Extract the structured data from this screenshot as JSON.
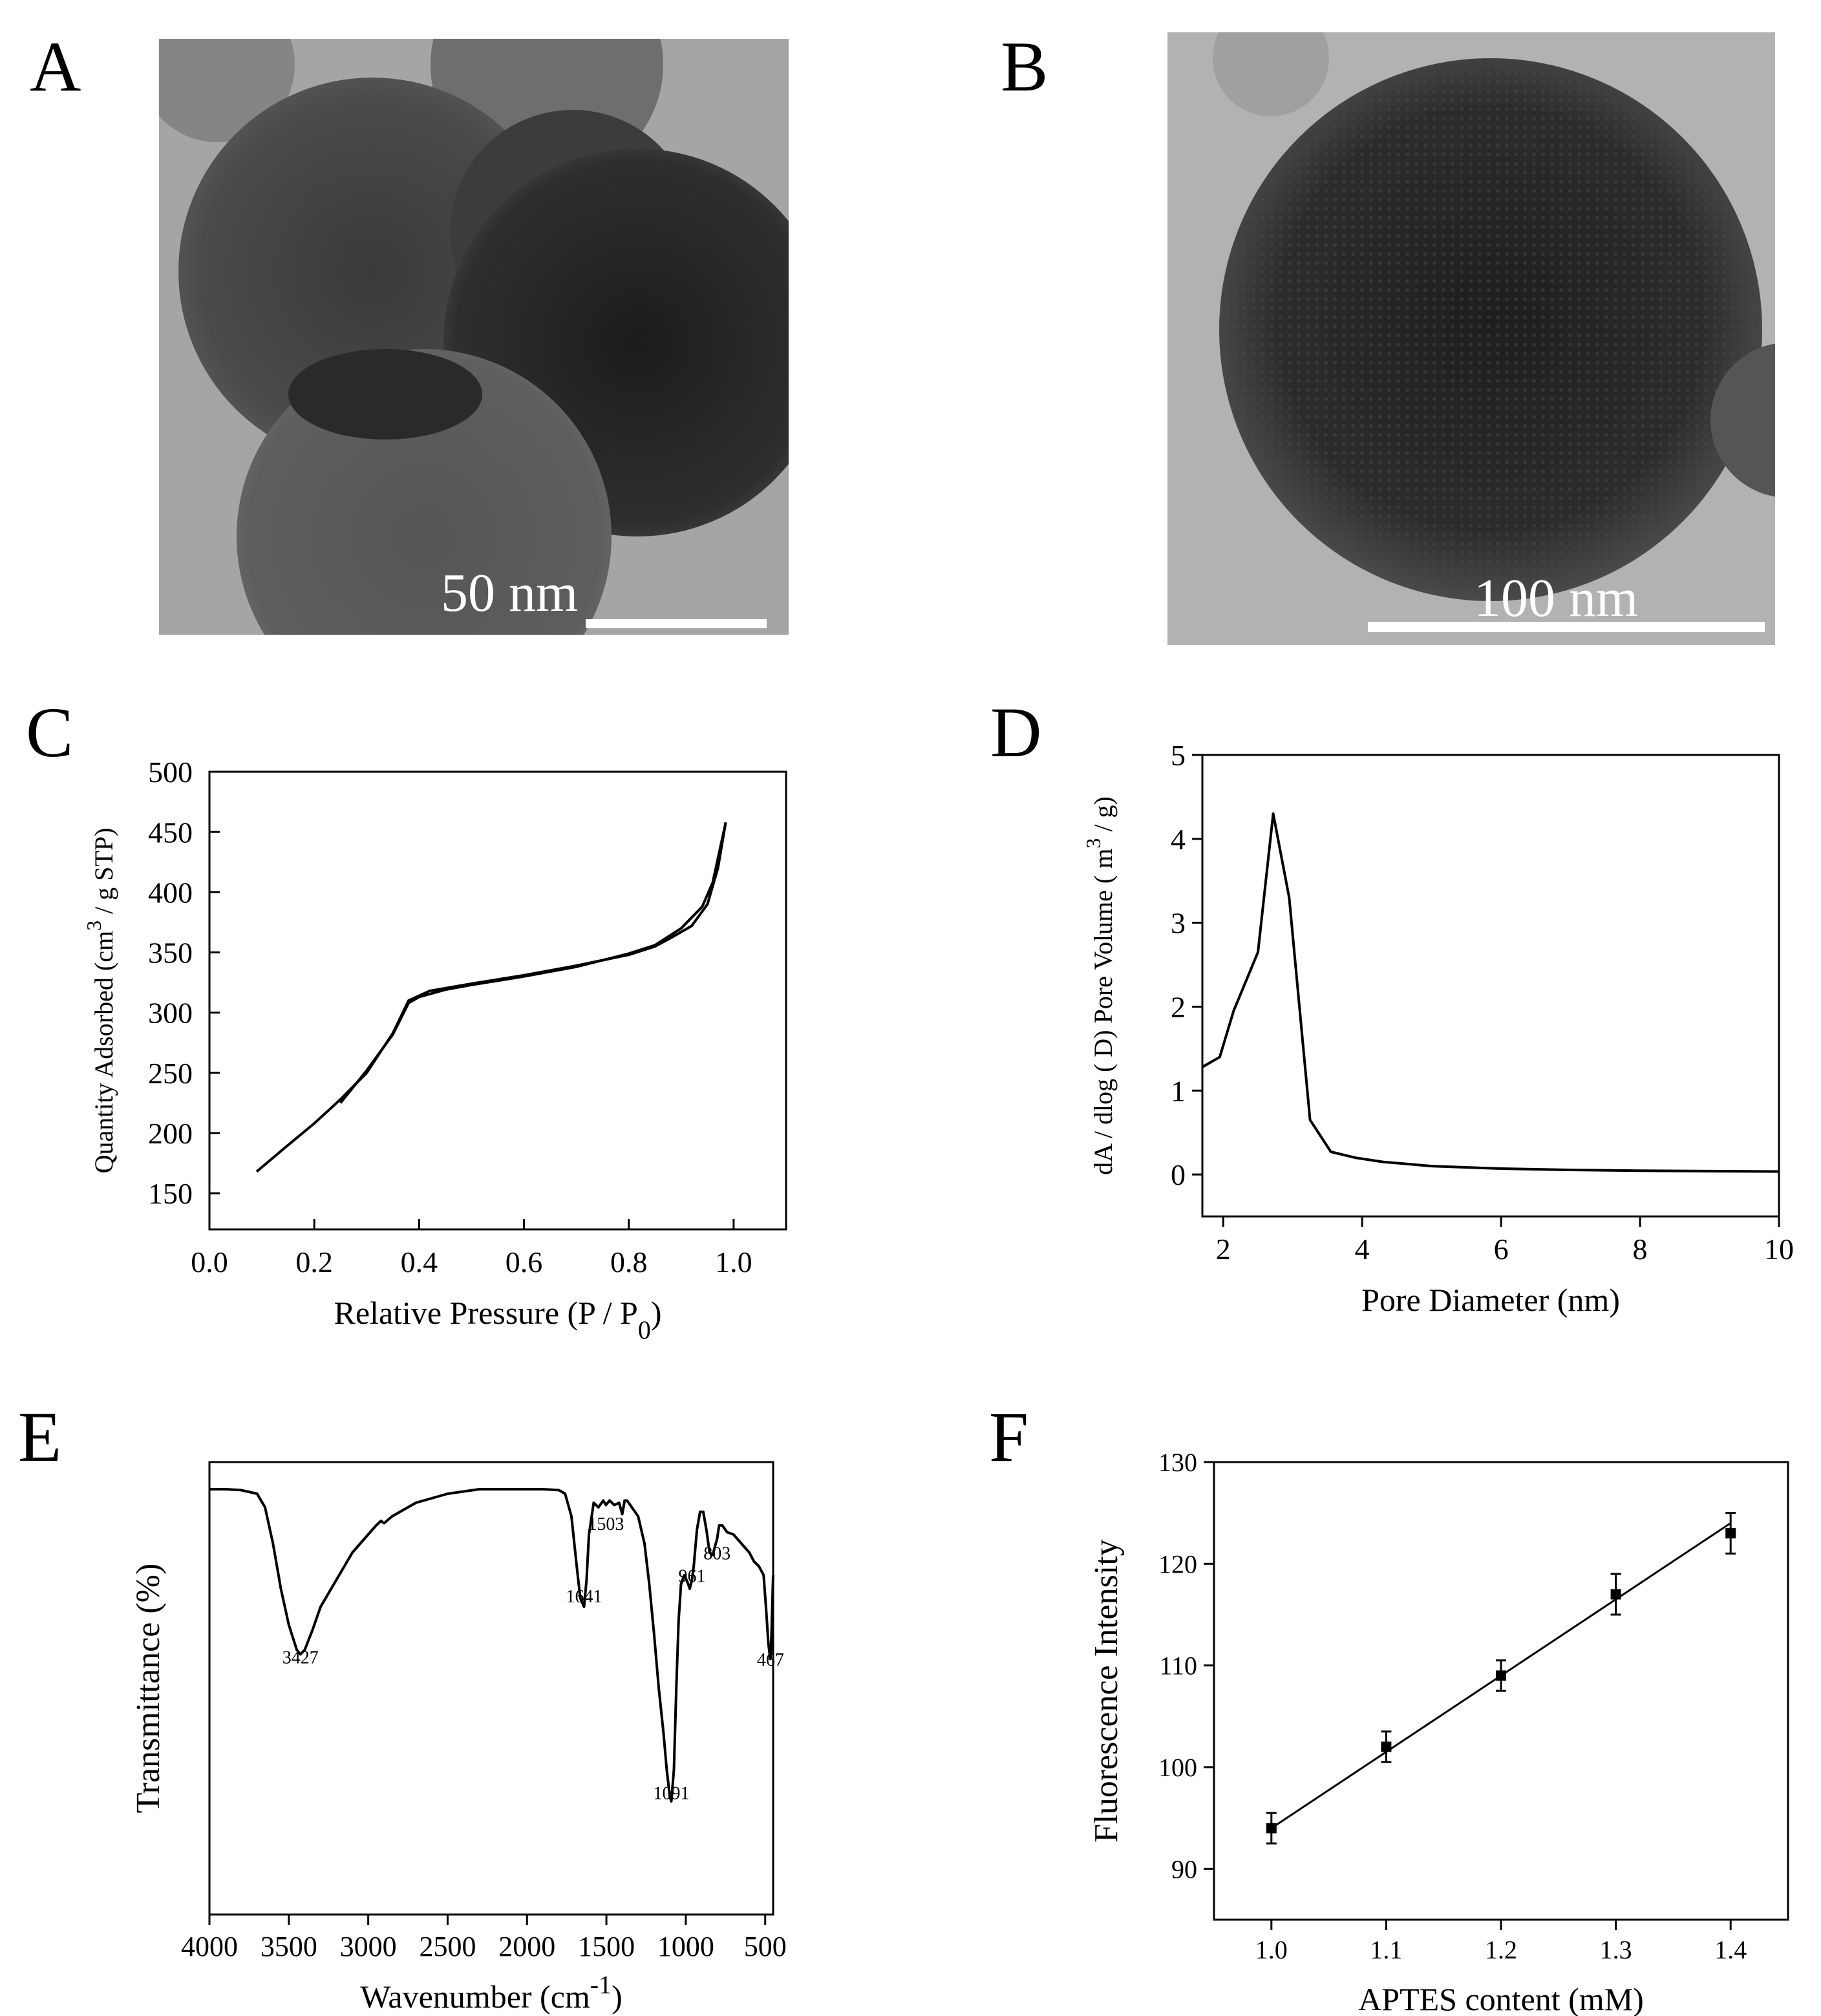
{
  "panels": {
    "A": {
      "letter": "A",
      "scale_bar": "50 nm"
    },
    "B": {
      "letter": "B",
      "scale_bar": "100 nm"
    },
    "C": {
      "letter": "C"
    },
    "D": {
      "letter": "D"
    },
    "E": {
      "letter": "E"
    },
    "F": {
      "letter": "F"
    }
  },
  "chart_data": [
    {
      "id": "C",
      "type": "line",
      "xlabel": "Relative Pressure (P / P",
      "xlabel_sub": "0",
      "xlabel_end": ")",
      "ylabel": "Quantity Adsorbed (cm",
      "ylabel_sup": "3",
      "ylabel_end": " / g STP)",
      "xlim": [
        0.0,
        1.1
      ],
      "ylim": [
        120,
        500
      ],
      "xticks": [
        "0.0",
        "0.2",
        "0.4",
        "0.6",
        "0.8",
        "1.0"
      ],
      "xtick_values": [
        0.0,
        0.2,
        0.4,
        0.6,
        0.8,
        1.0
      ],
      "yticks": [
        "150",
        "200",
        "250",
        "300",
        "350",
        "400",
        "450",
        "500"
      ],
      "ytick_values": [
        150,
        200,
        250,
        300,
        350,
        400,
        450,
        500
      ],
      "series": [
        {
          "x": [
            0.09,
            0.15,
            0.2,
            0.25,
            0.3,
            0.35,
            0.38,
            0.42,
            0.5,
            0.6,
            0.7,
            0.8,
            0.85,
            0.88,
            0.92,
            0.95,
            0.97,
            0.985
          ],
          "y": [
            168,
            190,
            208,
            228,
            250,
            283,
            310,
            318,
            324,
            331,
            339,
            348,
            355,
            362,
            372,
            390,
            420,
            458
          ]
        },
        {
          "x": [
            0.985,
            0.975,
            0.96,
            0.94,
            0.9,
            0.85,
            0.8,
            0.7,
            0.6,
            0.5,
            0.45,
            0.4,
            0.38,
            0.35,
            0.3,
            0.25
          ],
          "y": [
            458,
            438,
            408,
            388,
            370,
            356,
            349,
            338,
            330,
            323,
            319,
            313,
            308,
            282,
            252,
            225
          ]
        }
      ]
    },
    {
      "id": "D",
      "type": "line",
      "xlabel": "Pore Diameter (nm)",
      "ylabel": "dA / dlog ( D) Pore Volume ( m",
      "ylabel_sup": "3",
      "ylabel_end": " / g)",
      "xlim": [
        1.7,
        10
      ],
      "ylim": [
        -0.5,
        5
      ],
      "xticks": [
        "2",
        "4",
        "6",
        "8",
        "10"
      ],
      "xtick_values": [
        2,
        4,
        6,
        8,
        10
      ],
      "yticks": [
        "0",
        "1",
        "2",
        "3",
        "4",
        "5"
      ],
      "ytick_values": [
        0,
        1,
        2,
        3,
        4,
        5
      ],
      "series": [
        {
          "x": [
            1.7,
            1.95,
            2.15,
            2.5,
            2.72,
            2.95,
            3.25,
            3.55,
            3.9,
            4.3,
            5,
            6,
            7,
            8,
            9,
            10
          ],
          "y": [
            1.28,
            1.4,
            1.95,
            2.65,
            4.3,
            3.3,
            0.65,
            0.27,
            0.2,
            0.15,
            0.1,
            0.07,
            0.055,
            0.045,
            0.04,
            0.035
          ]
        }
      ]
    },
    {
      "id": "E",
      "type": "line",
      "xlabel": "Wavenumber (cm",
      "xlabel_sup": "-1",
      "xlabel_end": ")",
      "ylabel": "Transmittance (%)",
      "xlim": [
        4000,
        450
      ],
      "ylim": [
        0,
        100
      ],
      "xticks": [
        "4000",
        "3500",
        "3000",
        "2500",
        "2000",
        "1500",
        "1000",
        "500"
      ],
      "xtick_values": [
        4000,
        3500,
        3000,
        2500,
        2000,
        1500,
        1000,
        500
      ],
      "annotations": [
        {
          "text": "3427",
          "x": 3427,
          "y": 55.5
        },
        {
          "text": "1641",
          "x": 1641,
          "y": 69
        },
        {
          "text": "1503",
          "x": 1503,
          "y": 85
        },
        {
          "text": "961",
          "x": 961,
          "y": 73.5
        },
        {
          "text": "803",
          "x": 803,
          "y": 78.5
        },
        {
          "text": "1091",
          "x": 1091,
          "y": 25.5
        },
        {
          "text": "467",
          "x": 467,
          "y": 55
        }
      ],
      "series": [
        {
          "x": [
            4000,
            3900,
            3800,
            3700,
            3650,
            3600,
            3550,
            3500,
            3450,
            3427,
            3400,
            3350,
            3300,
            3200,
            3100,
            3000,
            2950,
            2920,
            2900,
            2850,
            2700,
            2500,
            2300,
            2100,
            1900,
            1800,
            1760,
            1720,
            1690,
            1665,
            1641,
            1625,
            1610,
            1580,
            1550,
            1520,
            1503,
            1480,
            1450,
            1420,
            1400,
            1385,
            1370,
            1340,
            1300,
            1260,
            1230,
            1200,
            1170,
            1140,
            1120,
            1100,
            1091,
            1075,
            1060,
            1045,
            1030,
            1010,
            990,
            975,
            961,
            950,
            930,
            910,
            890,
            870,
            850,
            830,
            815,
            803,
            790,
            770,
            740,
            700,
            650,
            600,
            570,
            540,
            510,
            495,
            480,
            470,
            467,
            460,
            450
          ],
          "y": [
            94,
            94,
            93.8,
            93,
            90,
            82,
            72,
            64,
            58.5,
            57.5,
            58.5,
            63,
            68,
            74,
            80,
            84,
            86,
            87,
            86.5,
            88,
            91,
            93,
            94,
            94,
            94,
            93.8,
            93,
            88,
            78,
            70,
            68,
            74,
            84,
            91,
            90,
            91.5,
            90.5,
            91.5,
            90.5,
            91,
            88.5,
            91.5,
            91.5,
            90,
            88,
            82,
            73,
            62,
            50,
            40,
            32,
            26,
            25,
            32,
            50,
            65,
            73,
            75,
            73.5,
            72,
            74,
            77,
            85,
            89,
            89,
            85,
            80,
            79.5,
            81.5,
            83,
            86,
            86,
            84.5,
            84,
            82,
            80,
            78,
            77,
            75,
            68,
            60,
            57,
            56.5,
            62,
            75
          ]
        }
      ]
    },
    {
      "id": "F",
      "type": "scatter",
      "xlabel": "APTES content (mM)",
      "ylabel": "Fluorescence Intensity",
      "xlim": [
        0.95,
        1.45
      ],
      "ylim": [
        85,
        130
      ],
      "xticks": [
        "1.0",
        "1.1",
        "1.2",
        "1.3",
        "1.4"
      ],
      "xtick_values": [
        1.0,
        1.1,
        1.2,
        1.3,
        1.4
      ],
      "yticks": [
        "90",
        "100",
        "110",
        "120",
        "130"
      ],
      "ytick_values": [
        90,
        100,
        110,
        120,
        130
      ],
      "points": {
        "x": [
          1.0,
          1.1,
          1.2,
          1.3,
          1.4
        ],
        "y": [
          94.0,
          102.0,
          109.0,
          117.0,
          123.0
        ],
        "err": [
          1.5,
          1.5,
          1.5,
          2.0,
          2.0
        ]
      },
      "fit": {
        "x": [
          1.0,
          1.4
        ],
        "y": [
          94.0,
          124.0
        ]
      }
    }
  ]
}
